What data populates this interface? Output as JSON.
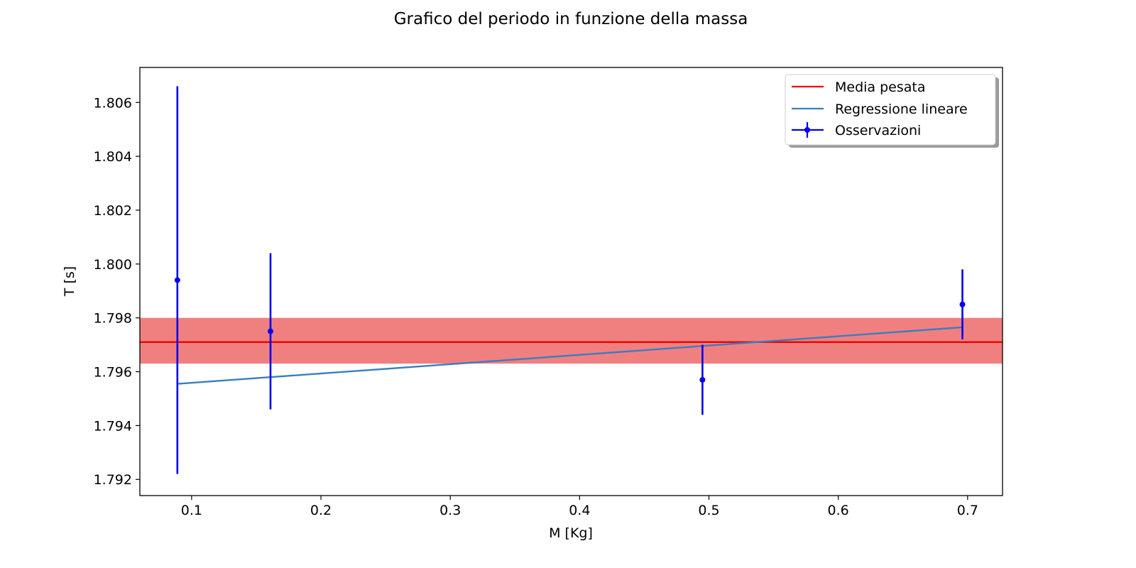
{
  "chart_data": {
    "type": "scatter",
    "title": "Grafico del periodo in funzione della massa",
    "xlabel": "M [Kg]",
    "ylabel": "T [s]",
    "xlim": [
      0.06,
      0.727
    ],
    "ylim": [
      1.7914,
      1.8073
    ],
    "xticks": [
      "0.1",
      "0.2",
      "0.3",
      "0.4",
      "0.5",
      "0.6",
      "0.7"
    ],
    "yticks": [
      "1.792",
      "1.794",
      "1.796",
      "1.798",
      "1.800",
      "1.802",
      "1.804",
      "1.806"
    ],
    "grid": false,
    "legend_position": "top-right",
    "series": [
      {
        "name": "Osservazioni",
        "kind": "errorbar",
        "color": "#0000ee",
        "points": [
          {
            "x": 0.089,
            "y": 1.7994,
            "yerr": 0.0072
          },
          {
            "x": 0.161,
            "y": 1.7975,
            "yerr": 0.0029
          },
          {
            "x": 0.495,
            "y": 1.7957,
            "yerr": 0.0013
          },
          {
            "x": 0.696,
            "y": 1.7985,
            "yerr": 0.0013
          }
        ]
      },
      {
        "name": "Media pesata",
        "kind": "hline",
        "color": "#ee0000",
        "band_color": "#f08080",
        "y": 1.7971,
        "band": [
          1.7963,
          1.798
        ]
      },
      {
        "name": "Regressione lineare",
        "kind": "line",
        "color": "#3a7dbf",
        "x": [
          0.089,
          0.696
        ],
        "y": [
          1.79555,
          1.79765
        ]
      }
    ]
  }
}
